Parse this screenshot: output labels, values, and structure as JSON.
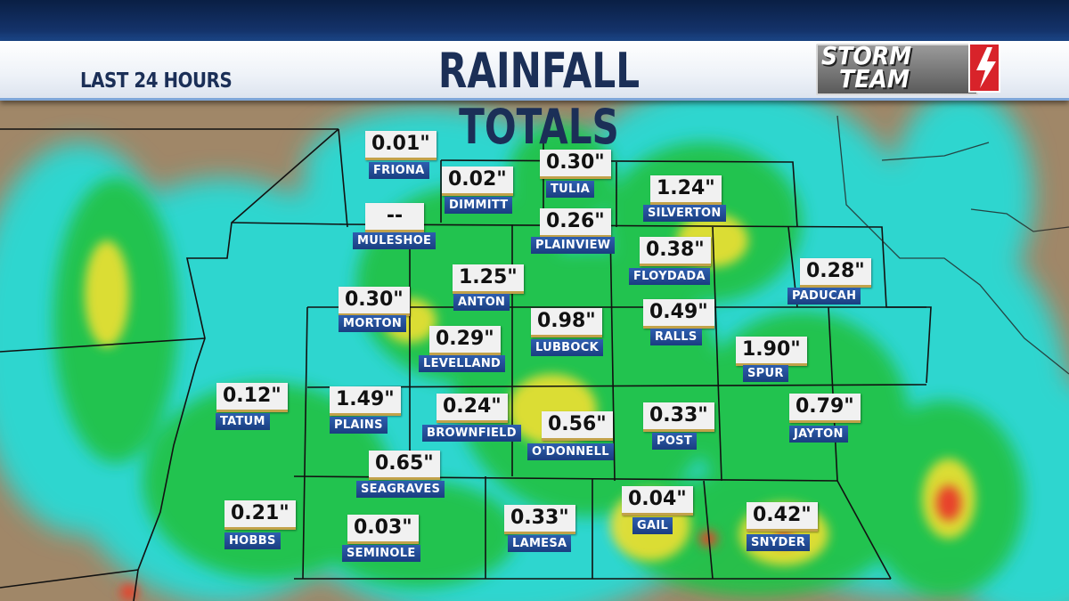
{
  "header": {
    "subtitle": "LAST 24 HOURS",
    "title": "RAINFALL TOTALS",
    "logo_line1": "STORM",
    "logo_line2": "TEAM"
  },
  "colors": {
    "header_text": "#1b2f57",
    "label_bg": "#1f4f9c",
    "value_bg": "#f1f1f1",
    "accent": "#c2a24a",
    "logo_bolt": "#d8232a",
    "land": "#a08768",
    "rain_light": "#2fd6cf",
    "rain_moderate": "#22c24a",
    "rain_heavy": "#f0e030",
    "rain_very_heavy": "#e8402a"
  },
  "stations": [
    {
      "name": "FRIONA",
      "value": "0.01\""
    },
    {
      "name": "DIMMITT",
      "value": "0.02\""
    },
    {
      "name": "TULIA",
      "value": "0.30\""
    },
    {
      "name": "SILVERTON",
      "value": "1.24\""
    },
    {
      "name": "MULESHOE",
      "value": "--"
    },
    {
      "name": "PLAINVIEW",
      "value": "0.26\""
    },
    {
      "name": "FLOYDADA",
      "value": "0.38\""
    },
    {
      "name": "PADUCAH",
      "value": "0.28\""
    },
    {
      "name": "ANTON",
      "value": "1.25\""
    },
    {
      "name": "MORTON",
      "value": "0.30\""
    },
    {
      "name": "LUBBOCK",
      "value": "0.98\""
    },
    {
      "name": "RALLS",
      "value": "0.49\""
    },
    {
      "name": "LEVELLAND",
      "value": "0.29\""
    },
    {
      "name": "SPUR",
      "value": "1.90\""
    },
    {
      "name": "TATUM",
      "value": "0.12\""
    },
    {
      "name": "PLAINS",
      "value": "1.49\""
    },
    {
      "name": "BROWNFIELD",
      "value": "0.24\""
    },
    {
      "name": "O'DONNELL",
      "value": "0.56\""
    },
    {
      "name": "POST",
      "value": "0.33\""
    },
    {
      "name": "JAYTON",
      "value": "0.79\""
    },
    {
      "name": "SEAGRAVES",
      "value": "0.65\""
    },
    {
      "name": "HOBBS",
      "value": "0.21\""
    },
    {
      "name": "SEMINOLE",
      "value": "0.03\""
    },
    {
      "name": "LAMESA",
      "value": "0.33\""
    },
    {
      "name": "GAIL",
      "value": "0.04\""
    },
    {
      "name": "SNYDER",
      "value": "0.42\""
    }
  ]
}
